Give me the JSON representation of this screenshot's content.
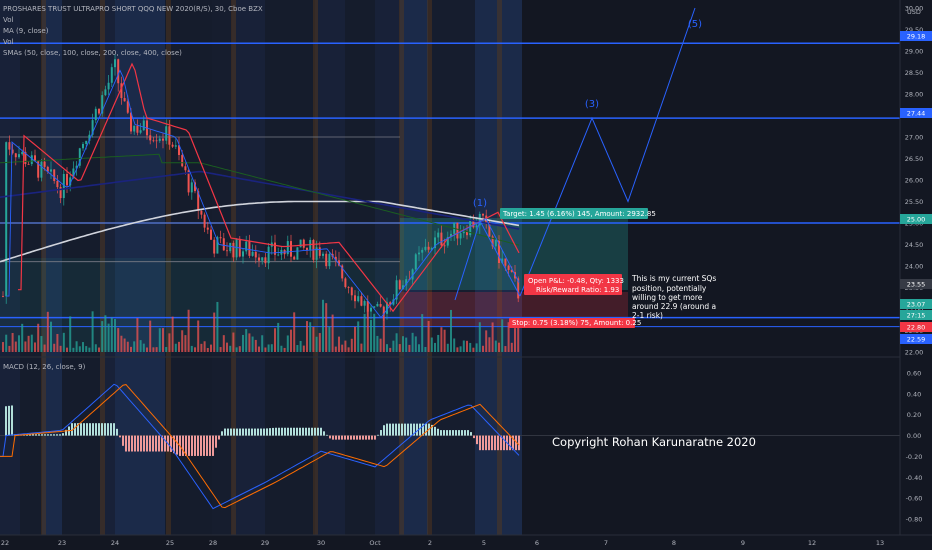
{
  "legend": {
    "title": "PROSHARES TRUST ULTRAPRO SHORT QQQ NEW 2020(R/S), 30, Cboe BZX",
    "lines": [
      "Vol",
      "MA (9, close)",
      "Vol",
      "SMAs (50, close, 100, close, 200, close, 400, close)"
    ],
    "macd": "MACD (12, 26, close, 9)"
  },
  "price_axis": {
    "ticks": [
      "30.00",
      "29.50",
      "29.00",
      "28.50",
      "28.00",
      "27.50",
      "27.00",
      "26.50",
      "26.00",
      "25.50",
      "25.00",
      "24.50",
      "24.00",
      "23.50",
      "23.00",
      "22.50",
      "22.00"
    ],
    "currency": "USD",
    "tags": [
      {
        "text": "29.18",
        "color": "#2962ff"
      },
      {
        "text": "27.44",
        "color": "#2962ff"
      },
      {
        "text": "25.00",
        "color": "#26a69a"
      },
      {
        "text": "23.55",
        "color": "#363a45"
      },
      {
        "text": "23.07",
        "color": "#26a69a"
      },
      {
        "text": "27:15",
        "color": "#26a69a"
      },
      {
        "text": "22.80",
        "color": "#f23645"
      },
      {
        "text": "22.59",
        "color": "#2962ff"
      }
    ]
  },
  "macd_axis": {
    "ticks": [
      "0.60",
      "0.40",
      "0.20",
      "0.00",
      "-0.20",
      "-0.40",
      "-0.60",
      "-0.80"
    ]
  },
  "time_axis": {
    "ticks": [
      "22",
      "23",
      "24",
      "25",
      "28",
      "29",
      "30",
      "Oct",
      "2",
      "5",
      "6",
      "7",
      "8",
      "9",
      "12",
      "13"
    ]
  },
  "position": {
    "target": "Target: 1.45 (6.16%) 145, Amount: 2932.85",
    "open_pl": "Open P&L: -0.48, Qty: 1333",
    "rr": "Risk/Reward Ratio: 1.93",
    "stop": "Stop: 0.75 (3.18%) 75, Amount: 0.25"
  },
  "waves": [
    "(1)",
    "(3)",
    "(5)"
  ],
  "note": [
    "This is my current SQs",
    "position, potentially",
    "willing to get more",
    "around 22.9 (around a",
    "2-1 risk)"
  ],
  "copyright": "Copyright Rohan Karunaratne 2020",
  "colors": {
    "bg": "#131722",
    "up": "#26a69a",
    "down": "#ef5350",
    "blue": "#2962ff",
    "sma_white": "#d1d4dc",
    "sma_navy": "#1a237e",
    "ma_red": "#f23645"
  },
  "chart_data": {
    "type": "candlestick",
    "title": "PROSHARES TRUST ULTRAPRO SHORT QQQ NEW 2020(R/S), 30, Cboe BZX",
    "y_range": [
      22.0,
      30.0
    ],
    "macd_range": [
      -0.8,
      0.6
    ],
    "close_path": [
      [
        "22",
        26.9
      ],
      [
        "23",
        25.8
      ],
      [
        "24",
        28.6
      ],
      [
        "24",
        27.3
      ],
      [
        "25",
        27.0
      ],
      [
        "28",
        24.5
      ],
      [
        "29",
        24.3
      ],
      [
        "30",
        24.4
      ],
      [
        "Oct",
        22.8
      ],
      [
        "2",
        24.5
      ],
      [
        "5",
        25.1
      ],
      [
        "5",
        23.3
      ]
    ],
    "levels": [
      29.18,
      27.44,
      25.0,
      22.8,
      22.59
    ],
    "projection": [
      [
        "5",
        23.3
      ],
      [
        "7",
        27.44
      ],
      [
        "7",
        25.5
      ],
      [
        "8",
        30.0
      ]
    ],
    "macd_path": [
      [
        "22",
        0.0
      ],
      [
        "23",
        0.05
      ],
      [
        "24",
        0.5
      ],
      [
        "25",
        -0.1
      ],
      [
        "28",
        -0.7
      ],
      [
        "29",
        -0.45
      ],
      [
        "30",
        -0.15
      ],
      [
        "Oct",
        -0.3
      ],
      [
        "2",
        0.15
      ],
      [
        "5",
        0.3
      ],
      [
        "5",
        -0.2
      ]
    ]
  }
}
